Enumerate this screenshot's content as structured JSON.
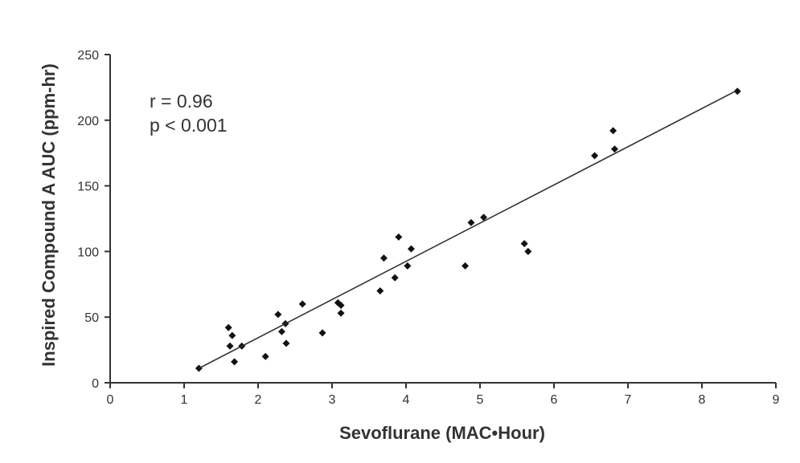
{
  "chart_data": {
    "type": "scatter",
    "xlabel": "Sevoflurane (MAC•Hour)",
    "ylabel": "Inspired Compound A AUC (ppm-hr)",
    "xlim": [
      0,
      9
    ],
    "ylim": [
      0,
      250
    ],
    "x_ticks": [
      "0",
      "1",
      "2",
      "3",
      "4",
      "5",
      "6",
      "7",
      "8",
      "9"
    ],
    "y_ticks": [
      "0",
      "50",
      "100",
      "150",
      "200",
      "250"
    ],
    "grid": false,
    "annotations": [
      "r = 0.96",
      "p < 0.001"
    ],
    "trendline": {
      "x": [
        1.2,
        8.45
      ],
      "y": [
        11,
        222
      ]
    },
    "points": [
      {
        "x": 1.2,
        "y": 11
      },
      {
        "x": 1.6,
        "y": 42
      },
      {
        "x": 1.62,
        "y": 28
      },
      {
        "x": 1.65,
        "y": 36
      },
      {
        "x": 1.68,
        "y": 16
      },
      {
        "x": 1.78,
        "y": 28
      },
      {
        "x": 2.1,
        "y": 20
      },
      {
        "x": 2.27,
        "y": 52
      },
      {
        "x": 2.32,
        "y": 39
      },
      {
        "x": 2.37,
        "y": 45
      },
      {
        "x": 2.38,
        "y": 30
      },
      {
        "x": 2.6,
        "y": 60
      },
      {
        "x": 2.87,
        "y": 38
      },
      {
        "x": 3.08,
        "y": 61
      },
      {
        "x": 3.12,
        "y": 59
      },
      {
        "x": 3.12,
        "y": 53
      },
      {
        "x": 3.65,
        "y": 70
      },
      {
        "x": 3.7,
        "y": 95
      },
      {
        "x": 3.85,
        "y": 80
      },
      {
        "x": 3.9,
        "y": 111
      },
      {
        "x": 4.02,
        "y": 89
      },
      {
        "x": 4.07,
        "y": 102
      },
      {
        "x": 4.8,
        "y": 89
      },
      {
        "x": 4.88,
        "y": 122
      },
      {
        "x": 5.05,
        "y": 126
      },
      {
        "x": 5.6,
        "y": 106
      },
      {
        "x": 5.65,
        "y": 100
      },
      {
        "x": 6.55,
        "y": 173
      },
      {
        "x": 6.8,
        "y": 192
      },
      {
        "x": 6.82,
        "y": 178
      },
      {
        "x": 8.48,
        "y": 222
      }
    ]
  }
}
